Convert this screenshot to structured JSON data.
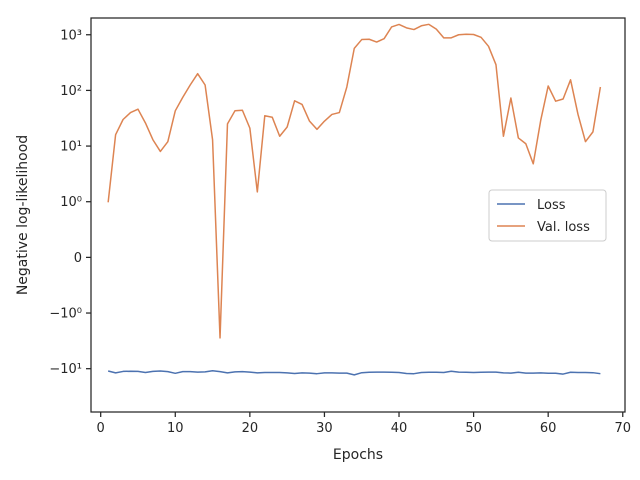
{
  "chart_data": {
    "type": "line",
    "title": "",
    "xlabel": "Epochs",
    "ylabel": "Negative log-likelihood",
    "yscale": "symlog",
    "xlim": [
      -1.3,
      70.3
    ],
    "ylim": [
      -60,
      2000
    ],
    "grid": false,
    "legend_position": "center-right",
    "x_ticks": [
      {
        "value": 0,
        "label": "0"
      },
      {
        "value": 10,
        "label": "10"
      },
      {
        "value": 20,
        "label": "20"
      },
      {
        "value": 30,
        "label": "30"
      },
      {
        "value": 40,
        "label": "40"
      },
      {
        "value": 50,
        "label": "50"
      },
      {
        "value": 60,
        "label": "60"
      },
      {
        "value": 70,
        "label": "70"
      }
    ],
    "y_ticks": [
      {
        "value": -10,
        "label": "−10¹"
      },
      {
        "value": -1,
        "label": "−10⁰"
      },
      {
        "value": 0,
        "label": "0"
      },
      {
        "value": 1,
        "label": "10⁰"
      },
      {
        "value": 10,
        "label": "10¹"
      },
      {
        "value": 100,
        "label": "10²"
      },
      {
        "value": 1000,
        "label": "10³"
      }
    ],
    "series": [
      {
        "name": "Loss",
        "color": "#4c72b0",
        "x": [
          1,
          2,
          3,
          4,
          5,
          6,
          7,
          8,
          9,
          10,
          11,
          12,
          13,
          14,
          15,
          16,
          17,
          18,
          19,
          20,
          21,
          22,
          23,
          24,
          25,
          26,
          27,
          28,
          29,
          30,
          31,
          32,
          33,
          34,
          35,
          36,
          37,
          38,
          39,
          40,
          41,
          42,
          43,
          44,
          45,
          46,
          47,
          48,
          49,
          50,
          51,
          52,
          53,
          54,
          55,
          56,
          57,
          58,
          59,
          60,
          61,
          62,
          63,
          64,
          65,
          66,
          67
        ],
        "values": [
          -11.0,
          -11.9,
          -11.2,
          -11.1,
          -11.2,
          -11.7,
          -11.2,
          -11.0,
          -11.3,
          -12.1,
          -11.3,
          -11.3,
          -11.5,
          -11.4,
          -10.9,
          -11.3,
          -11.9,
          -11.4,
          -11.3,
          -11.5,
          -11.9,
          -11.7,
          -11.7,
          -11.7,
          -11.9,
          -12.2,
          -11.9,
          -12.0,
          -12.3,
          -11.9,
          -11.9,
          -12.0,
          -12.0,
          -12.9,
          -11.8,
          -11.6,
          -11.5,
          -11.5,
          -11.6,
          -11.7,
          -12.2,
          -12.3,
          -11.7,
          -11.6,
          -11.6,
          -11.7,
          -11.1,
          -11.5,
          -11.6,
          -11.7,
          -11.6,
          -11.5,
          -11.5,
          -11.9,
          -12.0,
          -11.6,
          -12.0,
          -12.0,
          -11.9,
          -12.1,
          -12.1,
          -12.5,
          -11.6,
          -11.7,
          -11.7,
          -11.8,
          -12.3
        ]
      },
      {
        "name": "Val. loss",
        "color": "#dd8452",
        "x": [
          1,
          2,
          3,
          4,
          5,
          6,
          7,
          8,
          9,
          10,
          11,
          12,
          13,
          14,
          15,
          16,
          17,
          18,
          19,
          20,
          21,
          22,
          23,
          24,
          25,
          26,
          27,
          28,
          29,
          30,
          31,
          32,
          33,
          34,
          35,
          36,
          37,
          38,
          39,
          40,
          41,
          42,
          43,
          44,
          45,
          46,
          47,
          48,
          49,
          50,
          51,
          52,
          53,
          54,
          55,
          56,
          57,
          58,
          59,
          60,
          61,
          62,
          63,
          64,
          65,
          66,
          67
        ],
        "values": [
          0.99,
          16,
          30,
          40,
          46,
          26,
          13,
          8,
          12,
          43,
          75,
          125,
          200,
          125,
          13,
          -2.8,
          25,
          43,
          44,
          21,
          1.5,
          35,
          33,
          15,
          22,
          65,
          56,
          28,
          20,
          28,
          37,
          40,
          115,
          570,
          820,
          830,
          740,
          850,
          1380,
          1530,
          1330,
          1240,
          1450,
          1540,
          1260,
          880,
          880,
          1000,
          1020,
          1010,
          900,
          620,
          290,
          15,
          73,
          14,
          11,
          4.8,
          29,
          120,
          64,
          70,
          155,
          37,
          12,
          18,
          115
        ]
      }
    ]
  }
}
